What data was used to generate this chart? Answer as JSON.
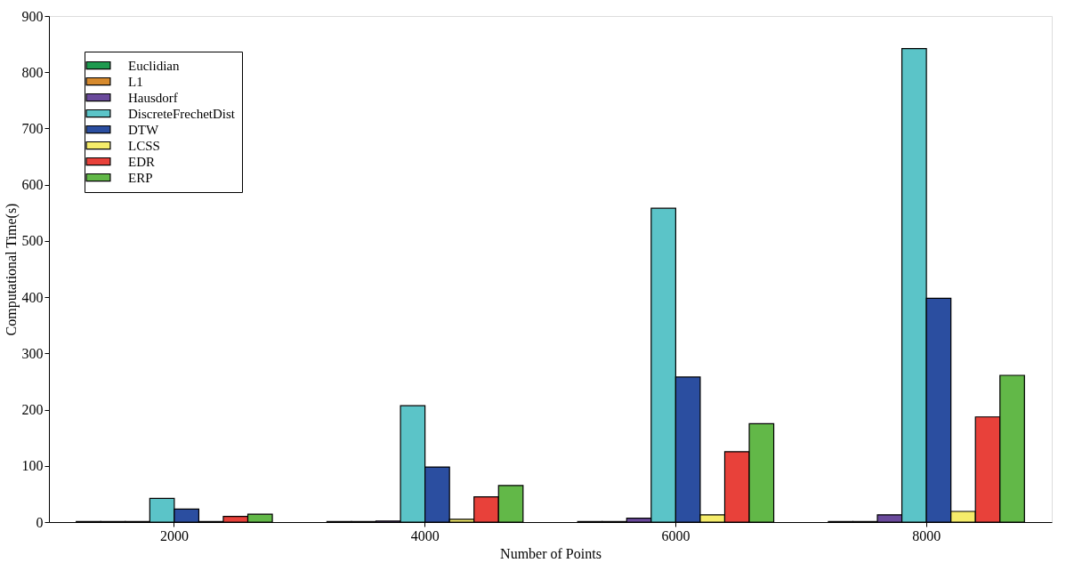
{
  "chart_data": {
    "type": "bar",
    "xlabel": "Number of Points",
    "ylabel": "Computational Time(s)",
    "categories": [
      "2000",
      "4000",
      "6000",
      "8000"
    ],
    "series": [
      {
        "name": "Euclidian",
        "color": "#1f9a4f",
        "values": [
          1,
          1,
          1,
          1
        ]
      },
      {
        "name": "L1",
        "color": "#d68a2e",
        "values": [
          1,
          1,
          1,
          1
        ]
      },
      {
        "name": "Hausdorf",
        "color": "#6a4a9c",
        "values": [
          1,
          2,
          7,
          13
        ]
      },
      {
        "name": "DiscreteFrechetDist",
        "color": "#5bc4c8",
        "values": [
          42,
          207,
          558,
          842
        ]
      },
      {
        "name": "DTW",
        "color": "#2b4ea0",
        "values": [
          23,
          98,
          258,
          398
        ]
      },
      {
        "name": "LCSS",
        "color": "#f5ec6a",
        "values": [
          1,
          5,
          13,
          19
        ]
      },
      {
        "name": "EDR",
        "color": "#e8413a",
        "values": [
          10,
          45,
          125,
          187
        ]
      },
      {
        "name": "ERP",
        "color": "#62b848",
        "values": [
          14,
          65,
          175,
          261
        ]
      }
    ],
    "ylim": [
      0,
      900
    ],
    "yticks": [
      0,
      100,
      200,
      300,
      400,
      500,
      600,
      700,
      800,
      900
    ],
    "grid": false,
    "legend": "top left"
  }
}
